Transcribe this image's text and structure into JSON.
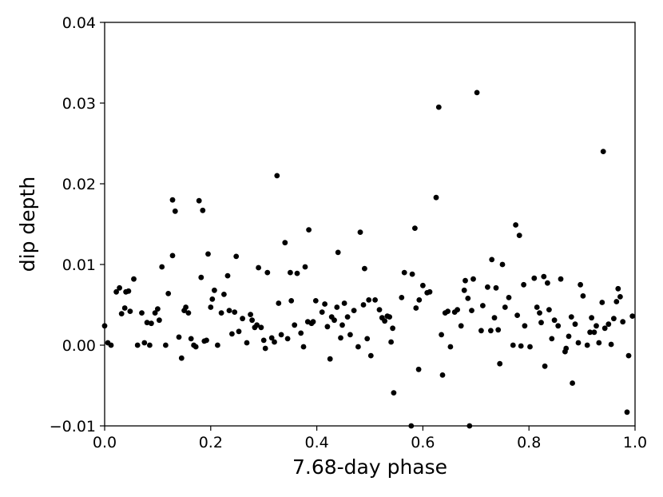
{
  "chart_data": {
    "type": "scatter",
    "title": "",
    "xlabel": "7.68-day phase",
    "ylabel": "dip depth",
    "xlim": [
      0.0,
      1.0
    ],
    "ylim": [
      -0.01,
      0.04
    ],
    "xticks": [
      "0.0",
      "0.2",
      "0.4",
      "0.6",
      "0.8",
      "1.0"
    ],
    "yticks": [
      "−0.01",
      "0.00",
      "0.01",
      "0.02",
      "0.03",
      "0.04"
    ],
    "grid": false,
    "marker_color": "#000000",
    "points": [
      [
        0.0,
        0.0024
      ],
      [
        0.006,
        0.0003
      ],
      [
        0.012,
        0.0
      ],
      [
        0.022,
        0.0066
      ],
      [
        0.028,
        0.0071
      ],
      [
        0.032,
        0.0039
      ],
      [
        0.038,
        0.0046
      ],
      [
        0.04,
        0.0066
      ],
      [
        0.045,
        0.0067
      ],
      [
        0.048,
        0.0042
      ],
      [
        0.055,
        0.0082
      ],
      [
        0.062,
        0.0
      ],
      [
        0.07,
        0.004
      ],
      [
        0.075,
        0.0003
      ],
      [
        0.08,
        0.0028
      ],
      [
        0.085,
        0.0
      ],
      [
        0.088,
        0.0027
      ],
      [
        0.095,
        0.004
      ],
      [
        0.1,
        0.0045
      ],
      [
        0.103,
        0.0031
      ],
      [
        0.108,
        0.0097
      ],
      [
        0.115,
        0.0
      ],
      [
        0.12,
        0.0064
      ],
      [
        0.128,
        0.018
      ],
      [
        0.128,
        0.0111
      ],
      [
        0.133,
        0.0166
      ],
      [
        0.14,
        0.001
      ],
      [
        0.145,
        -0.0016
      ],
      [
        0.15,
        0.0043
      ],
      [
        0.153,
        0.0047
      ],
      [
        0.158,
        0.004
      ],
      [
        0.163,
        0.0008
      ],
      [
        0.168,
        0.0
      ],
      [
        0.172,
        -0.0002
      ],
      [
        0.178,
        0.0179
      ],
      [
        0.182,
        0.0084
      ],
      [
        0.185,
        0.0167
      ],
      [
        0.188,
        0.0005
      ],
      [
        0.192,
        0.0006
      ],
      [
        0.195,
        0.0113
      ],
      [
        0.2,
        0.0047
      ],
      [
        0.203,
        0.0057
      ],
      [
        0.207,
        0.0068
      ],
      [
        0.213,
        0.0
      ],
      [
        0.22,
        0.004
      ],
      [
        0.225,
        0.0063
      ],
      [
        0.232,
        0.0086
      ],
      [
        0.235,
        0.0043
      ],
      [
        0.24,
        0.0014
      ],
      [
        0.245,
        0.0041
      ],
      [
        0.248,
        0.011
      ],
      [
        0.253,
        0.0017
      ],
      [
        0.26,
        0.0033
      ],
      [
        0.268,
        0.0003
      ],
      [
        0.275,
        0.0038
      ],
      [
        0.278,
        0.0031
      ],
      [
        0.283,
        0.0022
      ],
      [
        0.287,
        0.0025
      ],
      [
        0.29,
        0.0096
      ],
      [
        0.295,
        0.0022
      ],
      [
        0.3,
        0.0006
      ],
      [
        0.303,
        -0.0004
      ],
      [
        0.307,
        0.009
      ],
      [
        0.315,
        0.0009
      ],
      [
        0.32,
        0.0004
      ],
      [
        0.325,
        0.021
      ],
      [
        0.328,
        0.0052
      ],
      [
        0.333,
        0.0013
      ],
      [
        0.34,
        0.0127
      ],
      [
        0.345,
        0.0008
      ],
      [
        0.35,
        0.009
      ],
      [
        0.352,
        0.0055
      ],
      [
        0.358,
        0.0025
      ],
      [
        0.363,
        0.0089
      ],
      [
        0.37,
        0.0015
      ],
      [
        0.375,
        -0.0002
      ],
      [
        0.378,
        0.0097
      ],
      [
        0.383,
        0.0029
      ],
      [
        0.385,
        0.0143
      ],
      [
        0.39,
        0.0027
      ],
      [
        0.393,
        0.0029
      ],
      [
        0.398,
        0.0055
      ],
      [
        0.41,
        0.0041
      ],
      [
        0.415,
        0.0051
      ],
      [
        0.42,
        0.0023
      ],
      [
        0.425,
        -0.0017
      ],
      [
        0.428,
        0.0035
      ],
      [
        0.433,
        0.0031
      ],
      [
        0.438,
        0.0047
      ],
      [
        0.44,
        0.0115
      ],
      [
        0.445,
        0.0009
      ],
      [
        0.448,
        0.0025
      ],
      [
        0.452,
        0.0052
      ],
      [
        0.458,
        0.0035
      ],
      [
        0.463,
        0.0013
      ],
      [
        0.47,
        0.0043
      ],
      [
        0.478,
        -0.0002
      ],
      [
        0.482,
        0.014
      ],
      [
        0.488,
        0.005
      ],
      [
        0.49,
        0.0095
      ],
      [
        0.495,
        0.0008
      ],
      [
        0.498,
        0.0056
      ],
      [
        0.502,
        -0.0013
      ],
      [
        0.51,
        0.0056
      ],
      [
        0.518,
        0.0044
      ],
      [
        0.523,
        0.0034
      ],
      [
        0.528,
        0.003
      ],
      [
        0.533,
        0.0036
      ],
      [
        0.537,
        0.0035
      ],
      [
        0.54,
        0.0004
      ],
      [
        0.543,
        0.0021
      ],
      [
        0.545,
        -0.0059
      ],
      [
        0.56,
        0.0059
      ],
      [
        0.565,
        0.009
      ],
      [
        0.578,
        -0.01
      ],
      [
        0.58,
        0.0088
      ],
      [
        0.585,
        0.0145
      ],
      [
        0.587,
        0.0046
      ],
      [
        0.592,
        -0.003
      ],
      [
        0.593,
        0.0056
      ],
      [
        0.6,
        0.0074
      ],
      [
        0.608,
        0.0065
      ],
      [
        0.613,
        0.0066
      ],
      [
        0.625,
        0.0183
      ],
      [
        0.63,
        0.0295
      ],
      [
        0.635,
        0.0013
      ],
      [
        0.637,
        -0.0037
      ],
      [
        0.642,
        0.004
      ],
      [
        0.647,
        0.0042
      ],
      [
        0.652,
        -0.0002
      ],
      [
        0.66,
        0.0041
      ],
      [
        0.665,
        0.0044
      ],
      [
        0.672,
        0.0024
      ],
      [
        0.678,
        0.0068
      ],
      [
        0.68,
        0.008
      ],
      [
        0.685,
        0.0058
      ],
      [
        0.688,
        -0.01
      ],
      [
        0.692,
        0.0043
      ],
      [
        0.695,
        0.0082
      ],
      [
        0.702,
        0.0313
      ],
      [
        0.71,
        0.0018
      ],
      [
        0.713,
        0.0049
      ],
      [
        0.722,
        0.0072
      ],
      [
        0.728,
        0.0018
      ],
      [
        0.73,
        0.0106
      ],
      [
        0.735,
        0.0034
      ],
      [
        0.738,
        0.0071
      ],
      [
        0.742,
        0.0019
      ],
      [
        0.745,
        -0.0023
      ],
      [
        0.75,
        0.01
      ],
      [
        0.755,
        0.0047
      ],
      [
        0.762,
        0.0059
      ],
      [
        0.77,
        0.0
      ],
      [
        0.775,
        0.0149
      ],
      [
        0.778,
        0.0037
      ],
      [
        0.782,
        0.0136
      ],
      [
        0.785,
        -0.0001
      ],
      [
        0.79,
        0.0075
      ],
      [
        0.792,
        0.0024
      ],
      [
        0.802,
        -0.0002
      ],
      [
        0.81,
        0.0083
      ],
      [
        0.815,
        0.0047
      ],
      [
        0.82,
        0.004
      ],
      [
        0.823,
        0.0028
      ],
      [
        0.828,
        0.0085
      ],
      [
        0.83,
        -0.0026
      ],
      [
        0.835,
        0.0077
      ],
      [
        0.838,
        0.0044
      ],
      [
        0.843,
        0.0008
      ],
      [
        0.848,
        0.0031
      ],
      [
        0.855,
        0.0024
      ],
      [
        0.86,
        0.0082
      ],
      [
        0.868,
        -0.0008
      ],
      [
        0.87,
        -0.0004
      ],
      [
        0.875,
        0.0011
      ],
      [
        0.88,
        0.0035
      ],
      [
        0.882,
        -0.0047
      ],
      [
        0.887,
        0.0026
      ],
      [
        0.893,
        0.0003
      ],
      [
        0.897,
        0.0075
      ],
      [
        0.902,
        0.0061
      ],
      [
        0.91,
        0.0
      ],
      [
        0.915,
        0.0016
      ],
      [
        0.918,
        0.0034
      ],
      [
        0.923,
        0.0016
      ],
      [
        0.927,
        0.0024
      ],
      [
        0.932,
        0.0003
      ],
      [
        0.938,
        0.0053
      ],
      [
        0.94,
        0.024
      ],
      [
        0.943,
        0.0021
      ],
      [
        0.95,
        0.0026
      ],
      [
        0.955,
        0.0001
      ],
      [
        0.96,
        0.0033
      ],
      [
        0.965,
        0.0054
      ],
      [
        0.968,
        0.007
      ],
      [
        0.972,
        0.006
      ],
      [
        0.977,
        0.0029
      ],
      [
        0.985,
        -0.0083
      ],
      [
        0.988,
        -0.0013
      ],
      [
        0.995,
        0.0036
      ]
    ]
  }
}
